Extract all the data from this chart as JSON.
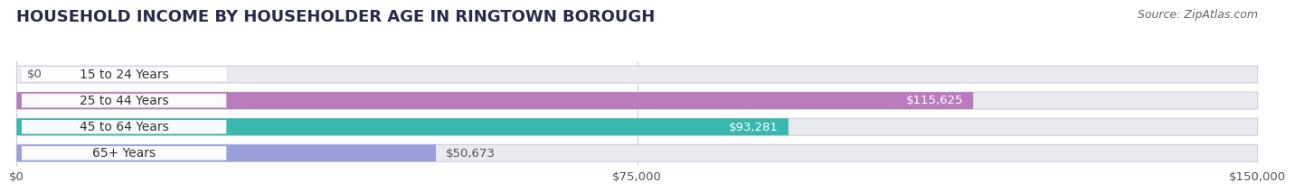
{
  "title": "HOUSEHOLD INCOME BY HOUSEHOLDER AGE IN RINGTOWN BOROUGH",
  "source": "Source: ZipAtlas.com",
  "categories": [
    "15 to 24 Years",
    "25 to 44 Years",
    "45 to 64 Years",
    "65+ Years"
  ],
  "values": [
    0,
    115625,
    93281,
    50673
  ],
  "bar_colors": [
    "#a8c0e8",
    "#b87cbd",
    "#3ab8b0",
    "#9b9fd8"
  ],
  "value_labels": [
    "$0",
    "$115,625",
    "$93,281",
    "$50,673"
  ],
  "value_inside": [
    false,
    true,
    true,
    false
  ],
  "xlim": [
    0,
    150000
  ],
  "xticks": [
    0,
    75000,
    150000
  ],
  "xticklabels": [
    "$0",
    "$75,000",
    "$150,000"
  ],
  "background_color": "#ffffff",
  "bar_bg_color": "#e9e9f0",
  "bar_border_color": "#d0d0dd",
  "title_fontsize": 13,
  "source_fontsize": 9,
  "label_fontsize": 10,
  "value_fontsize": 9.5,
  "tick_fontsize": 9.5,
  "title_color": "#2a2a4a",
  "source_color": "#666666",
  "label_text_color": "#333333",
  "value_color_inside": "#ffffff",
  "value_color_outside": "#555555",
  "grid_color": "#ccccdd",
  "bar_height": 0.65,
  "bar_gap": 0.35
}
